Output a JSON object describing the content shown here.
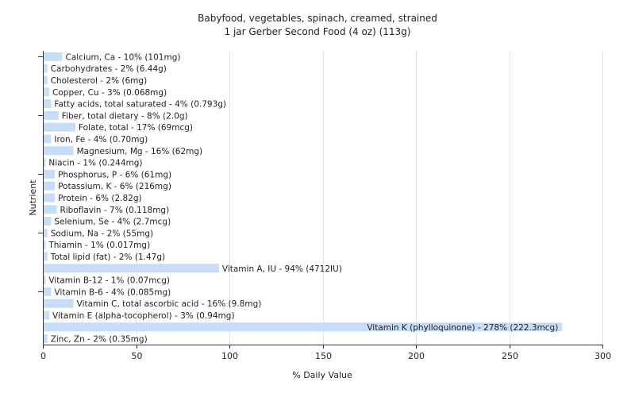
{
  "chart_data": {
    "type": "bar",
    "orientation": "horizontal",
    "title": "Babyfood, vegetables, spinach, creamed, strained",
    "subtitle": "1 jar Gerber Second Food (4 oz) (113g)",
    "xlabel": "% Daily Value",
    "ylabel": "Nutrient",
    "xlim": [
      0,
      300
    ],
    "xticks": [
      "0",
      "50",
      "100",
      "150",
      "200",
      "250",
      "300"
    ],
    "grid": true,
    "bar_color": "#c6dcf7",
    "categories": [
      "Calcium, Ca",
      "Carbohydrates",
      "Cholesterol",
      "Copper, Cu",
      "Fatty acids, total saturated",
      "Fiber, total dietary",
      "Folate, total",
      "Iron, Fe",
      "Magnesium, Mg",
      "Niacin",
      "Phosphorus, P",
      "Potassium, K",
      "Protein",
      "Riboflavin",
      "Selenium, Se",
      "Sodium, Na",
      "Thiamin",
      "Total lipid (fat)",
      "Vitamin A, IU",
      "Vitamin B-12",
      "Vitamin B-6",
      "Vitamin C, total ascorbic acid",
      "Vitamin E (alpha-tocopherol)",
      "Vitamin K (phylloquinone)",
      "Zinc, Zn"
    ],
    "values": [
      10,
      2,
      2,
      3,
      4,
      8,
      17,
      4,
      16,
      1,
      6,
      6,
      6,
      7,
      4,
      2,
      1,
      2,
      94,
      1,
      4,
      16,
      3,
      278,
      2
    ],
    "labels": [
      "Calcium, Ca - 10% (101mg)",
      "Carbohydrates - 2% (6.44g)",
      "Cholesterol - 2% (6mg)",
      "Copper, Cu - 3% (0.068mg)",
      "Fatty acids, total saturated - 4% (0.793g)",
      "Fiber, total dietary - 8% (2.0g)",
      "Folate, total - 17% (69mcg)",
      "Iron, Fe - 4% (0.70mg)",
      "Magnesium, Mg - 16% (62mg)",
      "Niacin - 1% (0.244mg)",
      "Phosphorus, P - 6% (61mg)",
      "Potassium, K - 6% (216mg)",
      "Protein - 6% (2.82g)",
      "Riboflavin - 7% (0.118mg)",
      "Selenium, Se - 4% (2.7mcg)",
      "Sodium, Na - 2% (55mg)",
      "Thiamin - 1% (0.017mg)",
      "Total lipid (fat) - 2% (1.47g)",
      "Vitamin A, IU - 94% (4712IU)",
      "Vitamin B-12 - 1% (0.07mcg)",
      "Vitamin B-6 - 4% (0.085mg)",
      "Vitamin C, total ascorbic acid - 16% (9.8mg)",
      "Vitamin E (alpha-tocopherol) - 3% (0.94mg)",
      "Vitamin K (phylloquinone) - 278% (222.3mcg)",
      "Zinc, Zn - 2% (0.35mg)"
    ]
  }
}
